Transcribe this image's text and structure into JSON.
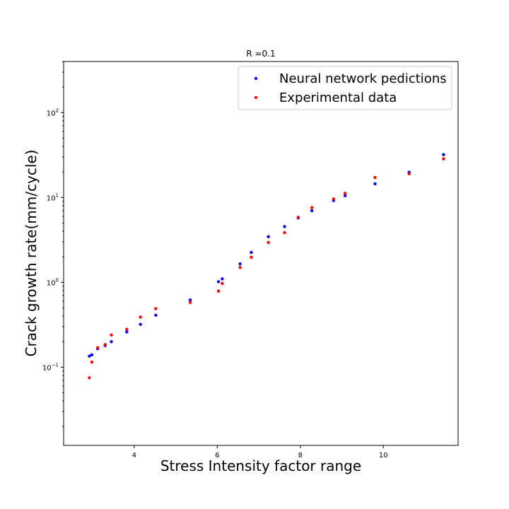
{
  "chart_data": {
    "type": "scatter",
    "title": "R =0.1",
    "xlabel": "Stress Intensity factor range",
    "ylabel": "Crack growth rate(mm/cycle)",
    "xlim": [
      2.3,
      11.8
    ],
    "ylim": [
      0.012,
      400
    ],
    "yscale": "log",
    "grid": false,
    "legend_position": "top-right",
    "x_ticks": [
      {
        "value": 4,
        "label": "4"
      },
      {
        "value": 6,
        "label": "6"
      },
      {
        "value": 8,
        "label": "8"
      },
      {
        "value": 10,
        "label": "10"
      }
    ],
    "y_ticks": [
      {
        "value": 0.1,
        "base": "10",
        "exp": "−1"
      },
      {
        "value": 1,
        "base": "10",
        "exp": "0"
      },
      {
        "value": 10,
        "base": "10",
        "exp": "1"
      },
      {
        "value": 100,
        "base": "10",
        "exp": "2"
      }
    ],
    "series": [
      {
        "name": "Neural network pedictions",
        "color": "#0000ff",
        "points": [
          [
            2.92,
            0.135
          ],
          [
            2.98,
            0.14
          ],
          [
            3.12,
            0.165
          ],
          [
            3.3,
            0.18
          ],
          [
            3.45,
            0.2
          ],
          [
            3.82,
            0.26
          ],
          [
            4.15,
            0.32
          ],
          [
            4.52,
            0.41
          ],
          [
            5.35,
            0.62
          ],
          [
            6.03,
            1.02
          ],
          [
            6.12,
            1.1
          ],
          [
            6.55,
            1.65
          ],
          [
            6.82,
            2.25
          ],
          [
            7.23,
            3.45
          ],
          [
            7.62,
            4.55
          ],
          [
            7.95,
            5.75
          ],
          [
            8.28,
            7.0
          ],
          [
            8.8,
            9.2
          ],
          [
            9.08,
            10.5
          ],
          [
            9.8,
            14.5
          ],
          [
            10.62,
            19.8
          ],
          [
            11.45,
            32.0
          ]
        ]
      },
      {
        "name": "Experimental data",
        "color": "#ff0000",
        "points": [
          [
            2.92,
            0.075
          ],
          [
            2.98,
            0.115
          ],
          [
            3.12,
            0.17
          ],
          [
            3.3,
            0.185
          ],
          [
            3.45,
            0.24
          ],
          [
            3.82,
            0.28
          ],
          [
            4.15,
            0.39
          ],
          [
            4.52,
            0.49
          ],
          [
            5.35,
            0.58
          ],
          [
            6.03,
            0.79
          ],
          [
            6.12,
            0.97
          ],
          [
            6.55,
            1.5
          ],
          [
            6.82,
            1.98
          ],
          [
            7.23,
            2.95
          ],
          [
            7.62,
            3.85
          ],
          [
            7.95,
            5.85
          ],
          [
            8.28,
            7.6
          ],
          [
            8.8,
            9.6
          ],
          [
            9.08,
            11.2
          ],
          [
            9.8,
            17.2
          ],
          [
            10.62,
            19.0
          ],
          [
            11.45,
            28.5
          ]
        ]
      }
    ]
  }
}
